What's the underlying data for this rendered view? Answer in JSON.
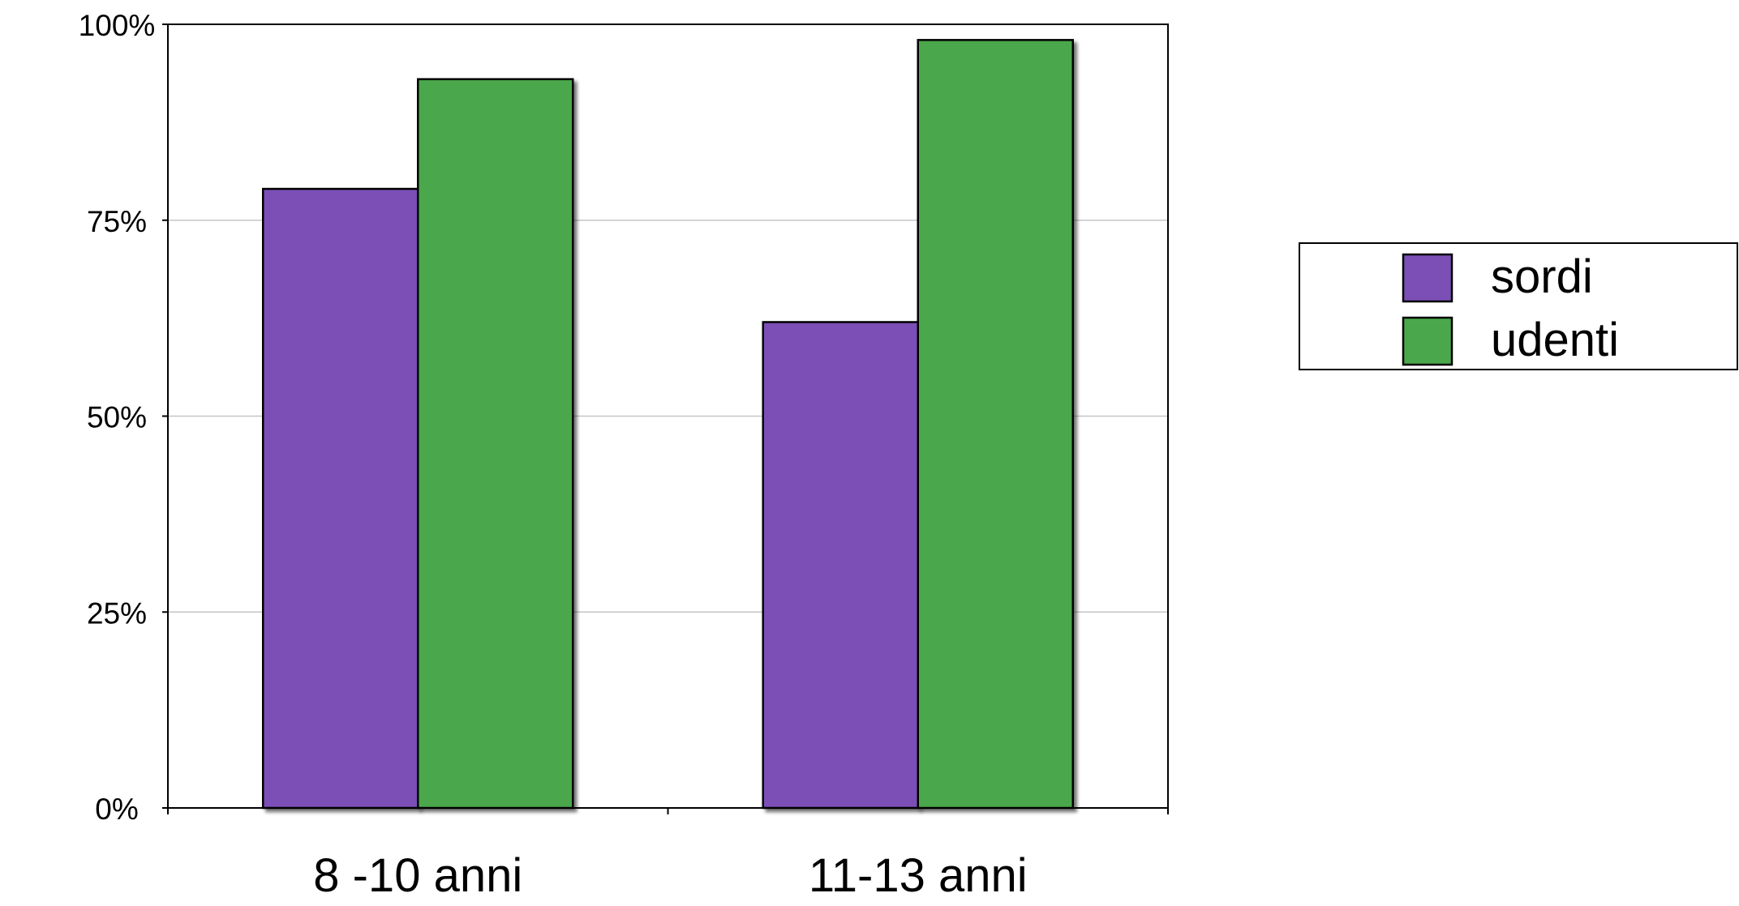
{
  "chart_data": {
    "type": "bar",
    "title": "",
    "xlabel": "",
    "ylabel": "",
    "categories": [
      "8 -10 anni",
      "11-13 anni"
    ],
    "series": [
      {
        "name": "sordi",
        "values": [
          79,
          62
        ],
        "color": "#7b4fb6"
      },
      {
        "name": "udenti",
        "values": [
          93,
          98
        ],
        "color": "#4ba74b"
      }
    ],
    "ylim": [
      0,
      100
    ],
    "yticks": [
      {
        "value": 0,
        "label": "0%"
      },
      {
        "value": 25,
        "label": "25%"
      },
      {
        "value": 50,
        "label": "50%"
      },
      {
        "value": 75,
        "label": "75%"
      },
      {
        "value": 100,
        "label": "100%"
      }
    ],
    "grid": true,
    "grid_color": "#c6c6c6",
    "legend_position": "right",
    "bar_shadow": true
  }
}
